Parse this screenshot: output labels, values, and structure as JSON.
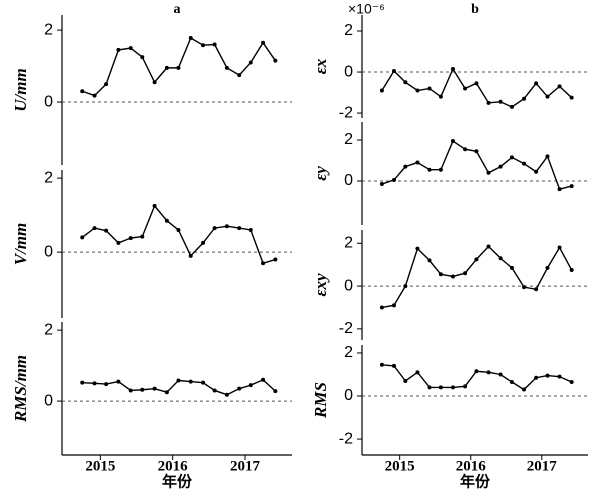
{
  "chart_data": [
    {
      "type": "line",
      "title": "a",
      "ylabel": "U/mm",
      "x": [
        2014.75,
        2014.92,
        2015.08,
        2015.25,
        2015.42,
        2015.58,
        2015.75,
        2015.92,
        2016.08,
        2016.25,
        2016.42,
        2016.58,
        2016.75,
        2016.92,
        2017.08,
        2017.25,
        2017.42
      ],
      "series": [
        {
          "color": "#000000",
          "values": [
            0.3,
            0.18,
            0.5,
            1.45,
            1.5,
            1.25,
            0.55,
            0.95,
            0.95,
            1.78,
            1.58,
            1.6,
            0.95,
            0.75,
            1.1,
            1.65,
            1.15
          ]
        }
      ],
      "xlim": [
        2014.47,
        2017.65
      ],
      "ylim": [
        -1.75,
        2.42
      ],
      "yticks": [
        0,
        2
      ],
      "reference_line": 0
    },
    {
      "type": "line",
      "ylabel": "V/mm",
      "x": [
        2014.75,
        2014.92,
        2015.08,
        2015.25,
        2015.42,
        2015.58,
        2015.75,
        2015.92,
        2016.08,
        2016.25,
        2016.42,
        2016.58,
        2016.75,
        2016.92,
        2017.08,
        2017.25,
        2017.42
      ],
      "series": [
        {
          "color": "#000000",
          "values": [
            0.4,
            0.65,
            0.58,
            0.25,
            0.38,
            0.42,
            1.25,
            0.85,
            0.6,
            -0.1,
            0.25,
            0.65,
            0.7,
            0.65,
            0.6,
            -0.3,
            -0.2
          ]
        }
      ],
      "xlim": [
        2014.47,
        2017.65
      ],
      "ylim": [
        -1.78,
        2.22
      ],
      "yticks": [
        0,
        2
      ],
      "reference_line": 0
    },
    {
      "type": "line",
      "ylabel": "RMS/mm",
      "x": [
        2014.75,
        2014.92,
        2015.08,
        2015.25,
        2015.42,
        2015.58,
        2015.75,
        2015.92,
        2016.08,
        2016.25,
        2016.42,
        2016.58,
        2016.75,
        2016.92,
        2017.08,
        2017.25,
        2017.42
      ],
      "series": [
        {
          "color": "#000000",
          "values": [
            0.52,
            0.5,
            0.48,
            0.55,
            0.3,
            0.32,
            0.35,
            0.25,
            0.58,
            0.55,
            0.52,
            0.3,
            0.18,
            0.35,
            0.45,
            0.6,
            0.28
          ]
        }
      ],
      "xlim": [
        2014.47,
        2017.65
      ],
      "ylim": [
        -1.52,
        2.23
      ],
      "yticks": [
        0,
        2
      ],
      "xticks": [
        2015,
        2016,
        2017
      ],
      "xlabel": "年份",
      "reference_line": 0
    },
    {
      "type": "line",
      "title": "b",
      "annotation": "×10⁻⁶",
      "ylabel": "εx",
      "x": [
        2014.75,
        2014.92,
        2015.08,
        2015.25,
        2015.42,
        2015.58,
        2015.75,
        2015.92,
        2016.08,
        2016.25,
        2016.42,
        2016.58,
        2016.75,
        2016.92,
        2017.08,
        2017.25,
        2017.42
      ],
      "series": [
        {
          "color": "#000000",
          "values": [
            -0.9,
            0.05,
            -0.5,
            -0.9,
            -0.8,
            -1.2,
            0.15,
            -0.8,
            -0.55,
            -1.5,
            -1.45,
            -1.7,
            -1.3,
            -0.55,
            -1.2,
            -0.7,
            -1.25
          ]
        }
      ],
      "xlim": [
        2014.47,
        2017.65
      ],
      "ylim": [
        -2.24,
        2.78
      ],
      "yticks": [
        -2,
        0,
        2
      ],
      "reference_line": 0
    },
    {
      "type": "line",
      "ylabel": "εy",
      "x": [
        2014.75,
        2014.92,
        2015.08,
        2015.25,
        2015.42,
        2015.58,
        2015.75,
        2015.92,
        2016.08,
        2016.25,
        2016.42,
        2016.58,
        2016.75,
        2016.92,
        2017.08,
        2017.25,
        2017.42
      ],
      "series": [
        {
          "color": "#000000",
          "values": [
            -0.15,
            0.05,
            0.7,
            0.9,
            0.55,
            0.55,
            1.95,
            1.55,
            1.45,
            0.4,
            0.7,
            1.15,
            0.85,
            0.45,
            1.2,
            -0.4,
            -0.25
          ]
        }
      ],
      "xlim": [
        2014.47,
        2017.65
      ],
      "ylim": [
        -2.15,
        2.88
      ],
      "yticks": [
        0,
        2
      ],
      "reference_line": 0
    },
    {
      "type": "line",
      "ylabel": "εxy",
      "x": [
        2014.75,
        2014.92,
        2015.08,
        2015.25,
        2015.42,
        2015.58,
        2015.75,
        2015.92,
        2016.08,
        2016.25,
        2016.42,
        2016.58,
        2016.75,
        2016.92,
        2017.08,
        2017.25,
        2017.42
      ],
      "series": [
        {
          "color": "#000000",
          "values": [
            -1.0,
            -0.9,
            0,
            1.75,
            1.2,
            0.55,
            0.45,
            0.6,
            1.25,
            1.85,
            1.3,
            0.85,
            -0.05,
            -0.15,
            0.85,
            1.8,
            0.75
          ]
        }
      ],
      "xlim": [
        2014.47,
        2017.65
      ],
      "ylim": [
        -2.52,
        2.62
      ],
      "yticks": [
        -2,
        0,
        2
      ],
      "reference_line": 0
    },
    {
      "type": "line",
      "ylabel": "RMS",
      "x": [
        2014.75,
        2014.92,
        2015.08,
        2015.25,
        2015.42,
        2015.58,
        2015.75,
        2015.92,
        2016.08,
        2016.25,
        2016.42,
        2016.58,
        2016.75,
        2016.92,
        2017.08,
        2017.25,
        2017.42
      ],
      "series": [
        {
          "color": "#000000",
          "values": [
            1.45,
            1.4,
            0.7,
            1.1,
            0.4,
            0.4,
            0.4,
            0.45,
            1.15,
            1.1,
            1.0,
            0.65,
            0.3,
            0.85,
            0.95,
            0.9,
            0.65
          ]
        }
      ],
      "xlim": [
        2014.47,
        2017.65
      ],
      "ylim": [
        -2.74,
        2.37
      ],
      "yticks": [
        -2,
        0,
        2
      ],
      "xticks": [
        2015,
        2016,
        2017
      ],
      "xlabel": "年份",
      "reference_line": 0
    }
  ]
}
